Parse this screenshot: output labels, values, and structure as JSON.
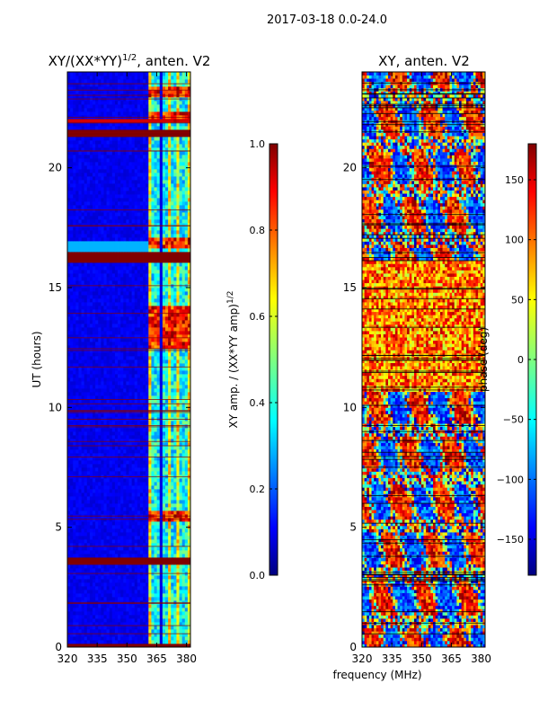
{
  "figure_title": "2017-03-18 0.0-24.0",
  "shared_xlabel": "frequency (MHz)",
  "colors": {
    "jet_low": "#00007f",
    "jet_blue": "#0000ff",
    "jet_cyan": "#00ffff",
    "jet_yellow": "#ffff00",
    "jet_red": "#ff0000",
    "jet_high": "#7f0000"
  },
  "chart_data": [
    {
      "type": "heatmap",
      "id": "amp",
      "title": "XY/(XX*YY)",
      "title_exponent": "1/2",
      "title_suffix": ", anten. V2",
      "xlabel": "",
      "ylabel": "UT (hours)",
      "xlim": [
        320,
        382
      ],
      "ylim": [
        0,
        24
      ],
      "xticks": [
        320,
        335,
        350,
        365,
        380
      ],
      "yticks": [
        0,
        5,
        10,
        15,
        20
      ],
      "colorbar": {
        "label": "XY amp. / (XX*YY amp)",
        "label_exponent": "1/2",
        "range": [
          0.0,
          1.0
        ],
        "ticks": [
          "0.0",
          "0.2",
          "0.4",
          "0.6",
          "0.8",
          "1.0"
        ]
      },
      "description_of_values": "Mostly low amplitude (~0.1) below 361 MHz; 361-382 MHz columns show elevated amplitude 0.3-0.9 with bright bands near 5.5, 12.5-14, 16.8, 22 UT; saturated horizontal lines at ~0.1, 3.6, 16.2, 21.5 UT"
    },
    {
      "type": "heatmap",
      "id": "phase",
      "title": "XY, anten. V2",
      "xlabel": "frequency (MHz)",
      "ylabel": "",
      "xlim": [
        320,
        382
      ],
      "ylim": [
        0,
        24
      ],
      "xticks": [
        320,
        335,
        350,
        365,
        380
      ],
      "yticks": [
        0,
        5,
        10,
        15,
        20
      ],
      "colorbar": {
        "label": "phase (deg)",
        "range": [
          -180,
          180
        ],
        "ticks": [
          "−150",
          "−100",
          "−50",
          "0",
          "50",
          "100",
          "150"
        ]
      },
      "description_of_values": "Noisy phase (-180 to 180 deg); predominantly positive phase (yellow-red) for 11-16 UT, mixed blue/red noise 0-10 UT and 16-24 UT"
    }
  ]
}
